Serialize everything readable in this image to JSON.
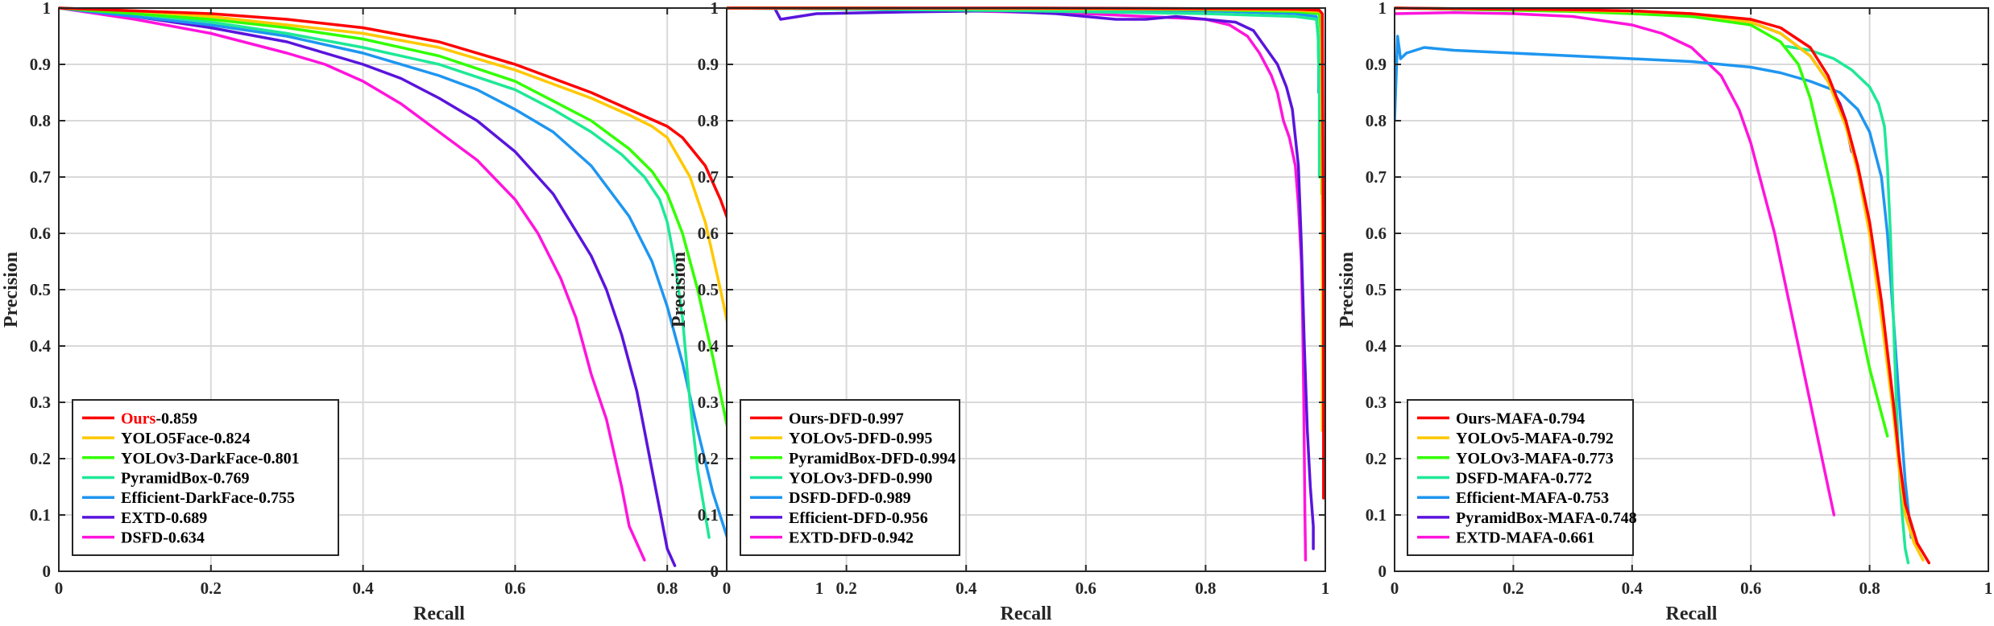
{
  "chart_data": [
    {
      "type": "line",
      "title": "",
      "xlabel": "Recall",
      "ylabel": "Precision",
      "xlim": [
        0,
        1
      ],
      "ylim": [
        0,
        1
      ],
      "xticks": [
        "0",
        "0.2",
        "0.4",
        "0.6",
        "0.8",
        "1"
      ],
      "yticks": [
        "0",
        "0.1",
        "0.2",
        "0.3",
        "0.4",
        "0.5",
        "0.6",
        "0.7",
        "0.8",
        "0.9",
        "1"
      ],
      "grid": true,
      "legend_position": "bottom-left",
      "series": [
        {
          "name": "Ours",
          "score": "-0.859",
          "highlight_name": true,
          "color": "#ff0000",
          "x": [
            0,
            0.1,
            0.2,
            0.3,
            0.4,
            0.5,
            0.6,
            0.7,
            0.75,
            0.8,
            0.82,
            0.85,
            0.87,
            0.9,
            0.92,
            0.94,
            0.96,
            0.975
          ],
          "y": [
            1,
            0.995,
            0.99,
            0.98,
            0.965,
            0.94,
            0.9,
            0.85,
            0.82,
            0.79,
            0.77,
            0.72,
            0.66,
            0.55,
            0.45,
            0.33,
            0.2,
            0.08
          ]
        },
        {
          "name": "YOLO5Face",
          "score": "-0.824",
          "color": "#ffc800",
          "x": [
            0,
            0.1,
            0.2,
            0.3,
            0.4,
            0.5,
            0.6,
            0.7,
            0.75,
            0.78,
            0.8,
            0.83,
            0.85,
            0.87,
            0.89,
            0.9,
            0.91,
            0.915
          ],
          "y": [
            1,
            0.995,
            0.985,
            0.97,
            0.955,
            0.93,
            0.89,
            0.84,
            0.81,
            0.79,
            0.77,
            0.7,
            0.62,
            0.5,
            0.37,
            0.27,
            0.18,
            0.12
          ]
        },
        {
          "name": "YOLOv3-DarkFace",
          "score": "-0.801",
          "color": "#32ff00",
          "x": [
            0,
            0.1,
            0.2,
            0.3,
            0.4,
            0.5,
            0.6,
            0.7,
            0.75,
            0.78,
            0.8,
            0.82,
            0.84,
            0.86,
            0.88,
            0.9,
            0.92
          ],
          "y": [
            1,
            0.99,
            0.98,
            0.965,
            0.945,
            0.915,
            0.87,
            0.8,
            0.75,
            0.71,
            0.67,
            0.6,
            0.5,
            0.38,
            0.25,
            0.14,
            0.07
          ]
        },
        {
          "name": "PyramidBox",
          "score": "-0.769",
          "color": "#1ee896",
          "x": [
            0,
            0.1,
            0.2,
            0.3,
            0.4,
            0.5,
            0.6,
            0.65,
            0.7,
            0.74,
            0.77,
            0.79,
            0.8,
            0.81,
            0.82,
            0.83,
            0.84,
            0.855
          ],
          "y": [
            1,
            0.99,
            0.975,
            0.955,
            0.93,
            0.9,
            0.855,
            0.82,
            0.78,
            0.74,
            0.7,
            0.66,
            0.62,
            0.55,
            0.45,
            0.3,
            0.18,
            0.06
          ]
        },
        {
          "name": "Efficient-DarkFace",
          "score": "-0.755",
          "color": "#1e96f0",
          "x": [
            0,
            0.1,
            0.2,
            0.3,
            0.4,
            0.5,
            0.55,
            0.6,
            0.65,
            0.7,
            0.75,
            0.78,
            0.8,
            0.82,
            0.84,
            0.86,
            0.88
          ],
          "y": [
            1,
            0.985,
            0.97,
            0.95,
            0.92,
            0.88,
            0.855,
            0.82,
            0.78,
            0.72,
            0.63,
            0.55,
            0.47,
            0.37,
            0.25,
            0.14,
            0.055
          ]
        },
        {
          "name": "EXTD",
          "score": "-0.689",
          "color": "#5a14dc",
          "x": [
            0,
            0.1,
            0.2,
            0.3,
            0.4,
            0.45,
            0.5,
            0.55,
            0.6,
            0.65,
            0.7,
            0.72,
            0.74,
            0.76,
            0.77,
            0.78,
            0.79,
            0.8,
            0.81
          ],
          "y": [
            1,
            0.985,
            0.965,
            0.94,
            0.9,
            0.875,
            0.84,
            0.8,
            0.745,
            0.67,
            0.56,
            0.5,
            0.42,
            0.32,
            0.25,
            0.18,
            0.11,
            0.04,
            0.01
          ]
        },
        {
          "name": "DSFD",
          "score": "-0.634",
          "color": "#ff14dc",
          "x": [
            0,
            0.1,
            0.2,
            0.3,
            0.35,
            0.4,
            0.45,
            0.5,
            0.55,
            0.6,
            0.63,
            0.66,
            0.68,
            0.69,
            0.7,
            0.72,
            0.74,
            0.75,
            0.77
          ],
          "y": [
            1,
            0.98,
            0.955,
            0.92,
            0.9,
            0.87,
            0.83,
            0.78,
            0.73,
            0.66,
            0.6,
            0.52,
            0.45,
            0.4,
            0.35,
            0.27,
            0.15,
            0.08,
            0.02
          ]
        }
      ]
    },
    {
      "type": "line",
      "title": "",
      "xlabel": "Recall",
      "ylabel": "Precision",
      "xlim": [
        0,
        1
      ],
      "ylim": [
        0,
        1
      ],
      "xticks": [
        "0",
        "0.2",
        "0.4",
        "0.6",
        "0.8",
        "1"
      ],
      "yticks": [
        "0",
        "0.1",
        "0.2",
        "0.3",
        "0.4",
        "0.5",
        "0.6",
        "0.7",
        "0.8",
        "0.9",
        "1"
      ],
      "grid": true,
      "legend_position": "bottom-left",
      "series": [
        {
          "name": "Ours-DFD",
          "score": "-0.997",
          "color": "#ff0000",
          "x": [
            0,
            0.2,
            0.5,
            0.8,
            0.95,
            0.99,
            0.995,
            0.997,
            0.997
          ],
          "y": [
            1,
            1,
            1,
            0.999,
            0.998,
            0.996,
            0.99,
            0.5,
            0.13
          ]
        },
        {
          "name": "YOLOv5-DFD",
          "score": "-0.995",
          "color": "#ffc800",
          "x": [
            0,
            0.2,
            0.5,
            0.8,
            0.95,
            0.99,
            0.994,
            0.995,
            0.995
          ],
          "y": [
            1,
            1,
            0.999,
            0.998,
            0.996,
            0.994,
            0.99,
            0.6,
            0.25
          ]
        },
        {
          "name": "PyramidBox-DFD",
          "score": "-0.994",
          "color": "#32ff00",
          "x": [
            0,
            0.2,
            0.5,
            0.8,
            0.95,
            0.99,
            0.993,
            0.994,
            0.994
          ],
          "y": [
            1,
            1,
            0.999,
            0.997,
            0.994,
            0.99,
            0.95,
            0.85,
            0.67
          ]
        },
        {
          "name": "YOLOv3-DFD",
          "score": "-0.990",
          "color": "#1ee896",
          "x": [
            0,
            0.2,
            0.5,
            0.8,
            0.95,
            0.985,
            0.988,
            0.99,
            0.99
          ],
          "y": [
            1,
            0.998,
            0.995,
            0.99,
            0.985,
            0.98,
            0.95,
            0.85,
            0.7
          ]
        },
        {
          "name": "DSFD-DFD",
          "score": "-0.989",
          "color": "#1e96f0",
          "x": [
            0,
            0.2,
            0.5,
            0.8,
            0.95,
            0.985,
            0.988,
            0.989,
            0.989
          ],
          "y": [
            1,
            0.999,
            0.998,
            0.995,
            0.99,
            0.985,
            0.95,
            0.9,
            0.85
          ]
        },
        {
          "name": "Efficient-DFD",
          "score": "-0.956",
          "color": "#5a14dc",
          "x": [
            0,
            0.08,
            0.09,
            0.15,
            0.3,
            0.45,
            0.55,
            0.6,
            0.65,
            0.7,
            0.75,
            0.8,
            0.85,
            0.88,
            0.9,
            0.92,
            0.935,
            0.945,
            0.955,
            0.96,
            0.965,
            0.97,
            0.975,
            0.98,
            0.98
          ],
          "y": [
            1,
            1,
            0.98,
            0.99,
            0.993,
            0.995,
            0.99,
            0.985,
            0.98,
            0.98,
            0.985,
            0.98,
            0.975,
            0.96,
            0.93,
            0.9,
            0.86,
            0.82,
            0.72,
            0.58,
            0.4,
            0.25,
            0.15,
            0.08,
            0.04
          ]
        },
        {
          "name": "EXTD-DFD",
          "score": "-0.942",
          "color": "#ff14dc",
          "x": [
            0,
            0.2,
            0.4,
            0.6,
            0.7,
            0.8,
            0.84,
            0.87,
            0.89,
            0.91,
            0.92,
            0.93,
            0.94,
            0.95,
            0.955,
            0.96,
            0.962,
            0.964,
            0.965,
            0.966,
            0.967
          ],
          "y": [
            1,
            0.998,
            0.995,
            0.99,
            0.985,
            0.98,
            0.97,
            0.95,
            0.92,
            0.88,
            0.85,
            0.8,
            0.77,
            0.72,
            0.65,
            0.55,
            0.45,
            0.3,
            0.2,
            0.1,
            0.02
          ]
        }
      ]
    },
    {
      "type": "line",
      "title": "",
      "xlabel": "Recall",
      "ylabel": "Precision",
      "xlim": [
        0,
        1
      ],
      "ylim": [
        0,
        1
      ],
      "xticks": [
        "0",
        "0.2",
        "0.4",
        "0.6",
        "0.8",
        "1"
      ],
      "yticks": [
        "0",
        "0.1",
        "0.2",
        "0.3",
        "0.4",
        "0.5",
        "0.6",
        "0.7",
        "0.8",
        "0.9",
        "1"
      ],
      "grid": true,
      "legend_position": "bottom-left",
      "series": [
        {
          "name": "Ours-MAFA",
          "score": "-0.794",
          "color": "#ff0000",
          "x": [
            0,
            0.1,
            0.2,
            0.3,
            0.4,
            0.5,
            0.6,
            0.65,
            0.7,
            0.73,
            0.76,
            0.78,
            0.8,
            0.82,
            0.84,
            0.85,
            0.86,
            0.88,
            0.9
          ],
          "y": [
            1,
            0.999,
            0.998,
            0.997,
            0.995,
            0.99,
            0.98,
            0.965,
            0.93,
            0.88,
            0.8,
            0.72,
            0.62,
            0.48,
            0.3,
            0.2,
            0.12,
            0.05,
            0.015
          ]
        },
        {
          "name": "YOLOv5-MAFA",
          "score": "-0.792",
          "color": "#ffc800",
          "x": [
            0,
            0.1,
            0.2,
            0.3,
            0.4,
            0.5,
            0.6,
            0.65,
            0.7,
            0.73,
            0.76,
            0.78,
            0.8,
            0.82,
            0.84,
            0.85,
            0.86,
            0.875,
            0.89
          ],
          "y": [
            1,
            0.999,
            0.998,
            0.996,
            0.994,
            0.99,
            0.975,
            0.955,
            0.915,
            0.87,
            0.79,
            0.71,
            0.6,
            0.45,
            0.28,
            0.18,
            0.1,
            0.05,
            0.02
          ]
        },
        {
          "name": "YOLOv3-MAFA",
          "score": "-0.773",
          "color": "#32ff00",
          "x": [
            0,
            0.1,
            0.2,
            0.3,
            0.4,
            0.5,
            0.6,
            0.65,
            0.68,
            0.7,
            0.72,
            0.74,
            0.76,
            0.78,
            0.8,
            0.82,
            0.83
          ],
          "y": [
            1,
            0.998,
            0.996,
            0.994,
            0.99,
            0.985,
            0.97,
            0.94,
            0.9,
            0.84,
            0.75,
            0.66,
            0.56,
            0.46,
            0.36,
            0.28,
            0.24
          ]
        },
        {
          "name": "DSFD-MAFA",
          "score": "-0.772",
          "color": "#1ee896",
          "x": [
            0.66,
            0.7,
            0.74,
            0.77,
            0.8,
            0.815,
            0.825,
            0.83,
            0.835,
            0.84,
            0.845,
            0.85,
            0.855,
            0.86,
            0.865
          ],
          "y": [
            0.932,
            0.925,
            0.91,
            0.89,
            0.86,
            0.83,
            0.79,
            0.72,
            0.6,
            0.45,
            0.3,
            0.18,
            0.1,
            0.04,
            0.015
          ]
        },
        {
          "name": "Efficient-MAFA",
          "score": "-0.753",
          "color": "#1e96f0",
          "x": [
            0,
            0.005,
            0.01,
            0.02,
            0.05,
            0.1,
            0.2,
            0.3,
            0.4,
            0.5,
            0.6,
            0.65,
            0.7,
            0.75,
            0.78,
            0.8,
            0.82,
            0.83,
            0.84,
            0.85,
            0.86,
            0.87
          ],
          "y": [
            0.8,
            0.95,
            0.91,
            0.92,
            0.93,
            0.925,
            0.92,
            0.915,
            0.91,
            0.905,
            0.895,
            0.885,
            0.87,
            0.85,
            0.82,
            0.78,
            0.7,
            0.6,
            0.45,
            0.3,
            0.16,
            0.06
          ]
        },
        {
          "name": "PyramidBox-MAFA",
          "score": "-0.748",
          "color": "#5a14dc",
          "x": [
            0,
            0.1,
            0.2,
            0.3,
            0.4,
            0.5,
            0.6,
            0.65,
            0.7,
            0.73,
            0.75,
            0.76,
            0.765,
            0.77
          ],
          "y": [
            1,
            0.998,
            0.997,
            0.995,
            0.993,
            0.99,
            0.975,
            0.955,
            0.915,
            0.87,
            0.83,
            0.8,
            0.77,
            0.745
          ]
        },
        {
          "name": "EXTD-MAFA",
          "score": "-0.661",
          "color": "#ff14dc",
          "x": [
            0,
            0.1,
            0.2,
            0.3,
            0.4,
            0.45,
            0.5,
            0.55,
            0.58,
            0.6,
            0.62,
            0.64,
            0.66,
            0.68,
            0.7,
            0.72,
            0.74
          ],
          "y": [
            0.99,
            0.992,
            0.99,
            0.985,
            0.97,
            0.955,
            0.93,
            0.88,
            0.82,
            0.76,
            0.68,
            0.6,
            0.5,
            0.4,
            0.3,
            0.2,
            0.1
          ]
        }
      ]
    }
  ]
}
